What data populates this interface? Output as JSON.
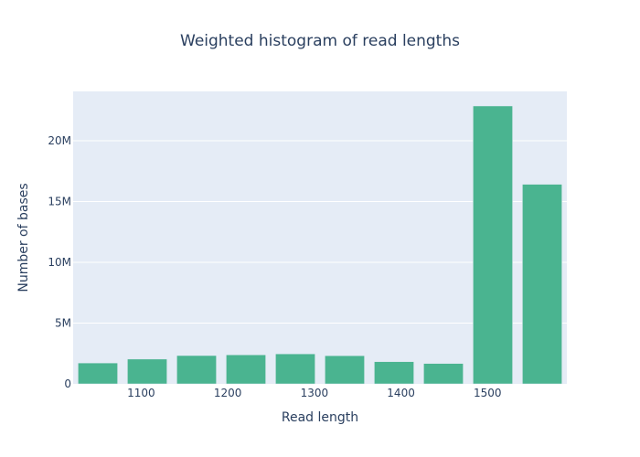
{
  "chart_data": {
    "type": "bar",
    "title": "Weighted histogram of read lengths",
    "xlabel": "Read length",
    "ylabel": "Number of bases",
    "x": [
      1050,
      1107,
      1164,
      1221,
      1278,
      1335,
      1392,
      1449,
      1506,
      1563
    ],
    "bin_width": 57,
    "values": [
      1720000,
      2040000,
      2330000,
      2390000,
      2470000,
      2320000,
      1830000,
      1680000,
      22860000,
      16420000
    ],
    "xlim": [
      1021.5,
      1591.5
    ],
    "ylim": [
      0,
      24060000
    ],
    "xticks": [
      1100,
      1200,
      1300,
      1400,
      1500
    ],
    "xtick_labels": [
      "1100",
      "1200",
      "1300",
      "1400",
      "1500"
    ],
    "yticks": [
      0,
      5000000,
      10000000,
      15000000,
      20000000
    ],
    "ytick_labels": [
      "0",
      "5M",
      "10M",
      "15M",
      "20M"
    ],
    "grid": true,
    "colors": {
      "bar": "#4ab490",
      "plot_bg": "#e5ecf6",
      "grid": "#ffffff",
      "text": "#2a3f5f"
    }
  }
}
